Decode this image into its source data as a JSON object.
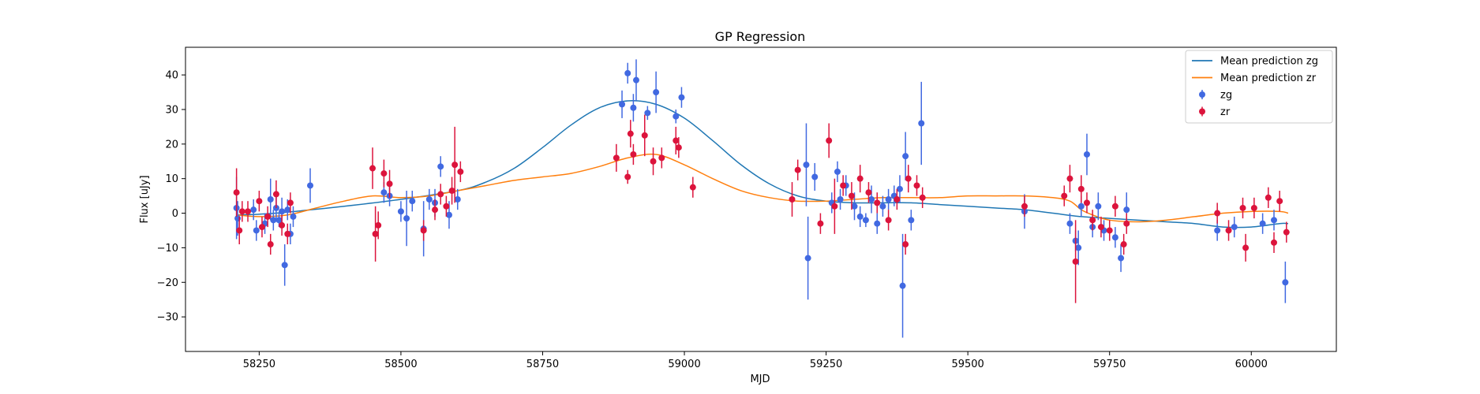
{
  "chart_data": {
    "type": "scatter",
    "title": "GP Regression",
    "xlabel": "MJD",
    "ylabel": "Flux [uJy]",
    "xlim": [
      58120,
      60150
    ],
    "ylim": [
      -40,
      48
    ],
    "xticks": [
      58250,
      58500,
      58750,
      59000,
      59250,
      59500,
      59750,
      60000
    ],
    "yticks": [
      -30,
      -20,
      -10,
      0,
      10,
      20,
      30,
      40
    ],
    "grid": false,
    "legend_position": "top-right",
    "legend": [
      {
        "label": "Mean prediction zg",
        "kind": "line",
        "color": "#1f77b4"
      },
      {
        "label": "Mean prediction zr",
        "kind": "line",
        "color": "#ff7f0e"
      },
      {
        "label": "zg",
        "kind": "errorbar",
        "color": "#4169e1"
      },
      {
        "label": "zr",
        "kind": "errorbar",
        "color": "#dc143c"
      }
    ],
    "lines": [
      {
        "name": "Mean prediction zg",
        "color": "#1f77b4",
        "x": [
          58210,
          58250,
          58300,
          58400,
          58500,
          58600,
          58650,
          58700,
          58750,
          58800,
          58850,
          58900,
          58950,
          59000,
          59050,
          59100,
          59150,
          59200,
          59250,
          59300,
          59350,
          59400,
          59450,
          59500,
          59550,
          59600,
          59650,
          59700,
          59750,
          59800,
          59850,
          59900,
          59950,
          60000,
          60050,
          60065
        ],
        "y": [
          -0.5,
          -0.3,
          0.3,
          2.0,
          4.0,
          6.5,
          9,
          13,
          19,
          25.5,
          30.5,
          32.5,
          31.5,
          27.5,
          21,
          14,
          8.5,
          5,
          3.5,
          3,
          3,
          3,
          2.5,
          2,
          1.5,
          1,
          0,
          -1,
          -1.5,
          -2,
          -2.5,
          -3,
          -4,
          -4,
          -3,
          -3
        ]
      },
      {
        "name": "Mean prediction zr",
        "color": "#ff7f0e",
        "x": [
          58210,
          58250,
          58300,
          58350,
          58400,
          58450,
          58500,
          58550,
          58600,
          58650,
          58700,
          58750,
          58800,
          58850,
          58900,
          58950,
          59000,
          59050,
          59100,
          59150,
          59200,
          59250,
          59300,
          59350,
          59400,
          59450,
          59500,
          59550,
          59600,
          59650,
          59680,
          59700,
          59720,
          59750,
          59800,
          59850,
          59900,
          59950,
          60000,
          60050,
          60065
        ],
        "y": [
          -0.5,
          -1,
          -0.5,
          1.5,
          3.5,
          5,
          4.5,
          5,
          6.5,
          8,
          9.5,
          10.5,
          11.5,
          13.5,
          16,
          17,
          14,
          10,
          6.5,
          4.5,
          3.5,
          3.5,
          4,
          4.5,
          4.5,
          4.5,
          5,
          5,
          5,
          4.5,
          3.5,
          1,
          -0.5,
          -2,
          -2.5,
          -2,
          -1,
          0,
          0.5,
          0.5,
          0
        ]
      }
    ],
    "series": [
      {
        "name": "zg",
        "color": "#4169e1",
        "points": [
          [
            58210,
            1.5,
            9
          ],
          [
            58212,
            -1.5,
            5
          ],
          [
            58240,
            1.0,
            3
          ],
          [
            58245,
            -5,
            3
          ],
          [
            58260,
            -3,
            3
          ],
          [
            58270,
            4,
            6
          ],
          [
            58275,
            -2,
            3
          ],
          [
            58280,
            1.5,
            4
          ],
          [
            58285,
            -2,
            2
          ],
          [
            58290,
            0.5,
            4
          ],
          [
            58295,
            -15,
            6
          ],
          [
            58300,
            1,
            3
          ],
          [
            58305,
            -6,
            3
          ],
          [
            58310,
            -1,
            3
          ],
          [
            58340,
            8,
            5
          ],
          [
            58470,
            6,
            3
          ],
          [
            58480,
            5,
            3
          ],
          [
            58500,
            0.5,
            3
          ],
          [
            58510,
            -1.5,
            8
          ],
          [
            58520,
            3.5,
            3
          ],
          [
            58540,
            -4.5,
            8
          ],
          [
            58550,
            4,
            3
          ],
          [
            58560,
            3,
            4
          ],
          [
            58570,
            13.5,
            3
          ],
          [
            58585,
            -0.5,
            4
          ],
          [
            58600,
            4,
            3
          ],
          [
            58890,
            31.5,
            4
          ],
          [
            58900,
            40.5,
            3
          ],
          [
            58910,
            30.5,
            4
          ],
          [
            58915,
            38.5,
            6
          ],
          [
            58935,
            29,
            2
          ],
          [
            58950,
            35,
            6
          ],
          [
            58985,
            28,
            2
          ],
          [
            58995,
            33.5,
            3
          ],
          [
            59215,
            14,
            12
          ],
          [
            59218,
            -13,
            12
          ],
          [
            59230,
            10.5,
            4
          ],
          [
            59260,
            3,
            3
          ],
          [
            59270,
            12,
            3
          ],
          [
            59275,
            4,
            3
          ],
          [
            59285,
            8,
            3
          ],
          [
            59300,
            2,
            4
          ],
          [
            59310,
            -1,
            3
          ],
          [
            59320,
            -2,
            2
          ],
          [
            59330,
            4,
            4
          ],
          [
            59340,
            -3,
            3
          ],
          [
            59350,
            2,
            3
          ],
          [
            59360,
            4,
            3
          ],
          [
            59370,
            5,
            3
          ],
          [
            59380,
            7,
            4
          ],
          [
            59385,
            -21,
            15
          ],
          [
            59390,
            16.5,
            7
          ],
          [
            59400,
            -2,
            3
          ],
          [
            59418,
            26,
            12
          ],
          [
            59600,
            0.5,
            5
          ],
          [
            59680,
            -3,
            3
          ],
          [
            59690,
            -8,
            3
          ],
          [
            59695,
            -10,
            5
          ],
          [
            59700,
            2,
            3
          ],
          [
            59710,
            17,
            6
          ],
          [
            59720,
            -4,
            3
          ],
          [
            59730,
            2,
            4
          ],
          [
            59740,
            -5,
            3
          ],
          [
            59760,
            -7,
            3
          ],
          [
            59770,
            -13,
            4
          ],
          [
            59780,
            1,
            5
          ],
          [
            59940,
            -5,
            3
          ],
          [
            59970,
            -4,
            3
          ],
          [
            60020,
            -3,
            3
          ],
          [
            60040,
            -2,
            3
          ],
          [
            60060,
            -20,
            6
          ]
        ]
      },
      {
        "name": "zr",
        "color": "#dc143c",
        "points": [
          [
            58210,
            6,
            7
          ],
          [
            58215,
            -5,
            4
          ],
          [
            58220,
            0.5,
            3
          ],
          [
            58230,
            0.5,
            3
          ],
          [
            58250,
            3.5,
            3
          ],
          [
            58255,
            -4,
            3
          ],
          [
            58265,
            -1,
            3
          ],
          [
            58270,
            -9,
            3
          ],
          [
            58280,
            5.5,
            4
          ],
          [
            58290,
            -3.5,
            3
          ],
          [
            58300,
            -6,
            3
          ],
          [
            58305,
            3,
            3
          ],
          [
            58450,
            13,
            6
          ],
          [
            58455,
            -6,
            8
          ],
          [
            58460,
            -3.5,
            4
          ],
          [
            58470,
            11.5,
            4
          ],
          [
            58480,
            8.5,
            4
          ],
          [
            58540,
            -5,
            3
          ],
          [
            58560,
            1,
            3
          ],
          [
            58570,
            5.5,
            3
          ],
          [
            58580,
            2,
            3
          ],
          [
            58590,
            6.5,
            4
          ],
          [
            58595,
            14,
            11
          ],
          [
            58605,
            12,
            3
          ],
          [
            58880,
            16,
            4
          ],
          [
            58900,
            10.5,
            2
          ],
          [
            58905,
            23,
            4
          ],
          [
            58910,
            17,
            3
          ],
          [
            58930,
            22.5,
            6
          ],
          [
            58945,
            15,
            4
          ],
          [
            58960,
            16,
            3
          ],
          [
            58985,
            21,
            4
          ],
          [
            58990,
            19,
            3
          ],
          [
            59015,
            7.5,
            3
          ],
          [
            59190,
            4,
            5
          ],
          [
            59200,
            12.5,
            3
          ],
          [
            59240,
            -3,
            3
          ],
          [
            59255,
            21,
            5
          ],
          [
            59265,
            2,
            8
          ],
          [
            59280,
            8,
            3
          ],
          [
            59295,
            5,
            4
          ],
          [
            59310,
            10,
            4
          ],
          [
            59325,
            6,
            3
          ],
          [
            59340,
            3,
            3
          ],
          [
            59360,
            -2,
            3
          ],
          [
            59375,
            4,
            3
          ],
          [
            59390,
            -9,
            3
          ],
          [
            59395,
            10,
            4
          ],
          [
            59410,
            8,
            3
          ],
          [
            59420,
            4.5,
            3
          ],
          [
            59600,
            2,
            3
          ],
          [
            59670,
            5,
            3
          ],
          [
            59680,
            10,
            4
          ],
          [
            59690,
            -14,
            12
          ],
          [
            59700,
            7,
            4
          ],
          [
            59710,
            3,
            3
          ],
          [
            59720,
            -2,
            3
          ],
          [
            59735,
            -4,
            3
          ],
          [
            59750,
            -5,
            3
          ],
          [
            59760,
            2,
            3
          ],
          [
            59775,
            -9,
            3
          ],
          [
            59780,
            -3,
            3
          ],
          [
            59940,
            0,
            3
          ],
          [
            59960,
            -5,
            3
          ],
          [
            59985,
            1.5,
            3
          ],
          [
            59990,
            -10,
            4
          ],
          [
            60005,
            1.5,
            3
          ],
          [
            60030,
            4.5,
            3
          ],
          [
            60040,
            -8.5,
            3
          ],
          [
            60050,
            3.5,
            3
          ],
          [
            60062,
            -5.5,
            3
          ]
        ]
      }
    ]
  }
}
